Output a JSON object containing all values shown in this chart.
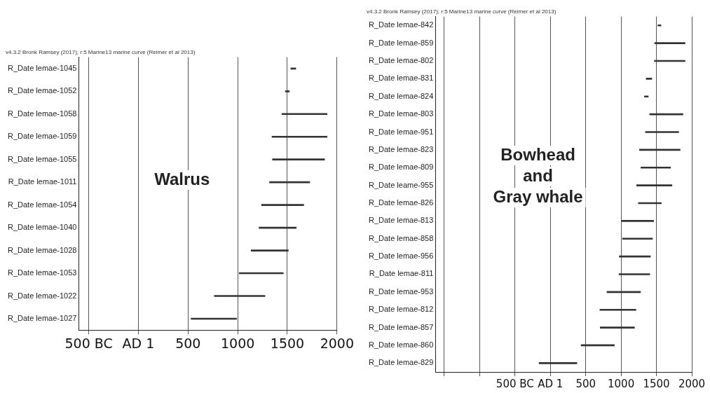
{
  "chart_data": [
    {
      "type": "bar",
      "orientation": "horizontal",
      "title": "v4.3.2 Bronk Ramsey (2017); r:5 Marine13 marine curve (Reimer et al 2013)",
      "categories": [
        "R_Date lemae-1045",
        "R_Date lemae-1052",
        "R_Date lemae-1058",
        "R_Date lemae-1059",
        "R_Date lemae-1055",
        "R_Date lemae-1011",
        "R_Date lemae-1054",
        "R_Date lemae-1040",
        "R_Date lemae-1028",
        "R_Date lemae-1053",
        "R_Date lemae-1022",
        "R_Date lemae-1027"
      ],
      "base": [
        1535,
        1480,
        1445,
        1345,
        1350,
        1320,
        1240,
        1215,
        1135,
        1015,
        765,
        530
      ],
      "values": [
        50,
        40,
        455,
        555,
        525,
        405,
        425,
        375,
        375,
        445,
        510,
        460
      ],
      "color": "#333333",
      "xlim": [
        -600,
        2000
      ],
      "xticks": [
        {
          "value": -500,
          "label": "500 BC"
        },
        {
          "value": 0,
          "label": "AD 1"
        },
        500,
        1000,
        1500,
        2000
      ],
      "grid": "x",
      "legend": false,
      "annotations": [
        "Walrus"
      ]
    },
    {
      "type": "bar",
      "orientation": "horizontal",
      "title": "v4.3.2 Bronk Ramsey (2017); r:5 Marine13 marine curve (Reimer et al 2013)",
      "categories": [
        "R_Date lemae-842",
        "R_Date lemae-859",
        "R_Date lemae-802",
        "R_Date lemae-831",
        "R_Date lemae-824",
        "R_Date lemae-803",
        "R_Date lemae-951",
        "R_Date lemae-823",
        "R_Date lemae-809",
        "R_Date leame-955",
        "R_Date lemae-826",
        "R_Date lemae-813",
        "R_Date lemae-858",
        "R_Date lemae-956",
        "R_Date lemae-811",
        "R_Date lemae-953",
        "R_Date lemae-812",
        "R_Date lemae-857",
        "R_Date lemae-860",
        "R_Date lemae-829"
      ],
      "base": [
        1520,
        1475,
        1470,
        1355,
        1330,
        1405,
        1345,
        1260,
        1280,
        1220,
        1245,
        1005,
        1020,
        975,
        970,
        800,
        700,
        705,
        435,
        -160
      ],
      "values": [
        45,
        430,
        435,
        80,
        55,
        470,
        470,
        575,
        420,
        500,
        325,
        455,
        425,
        440,
        435,
        475,
        510,
        485,
        470,
        535
      ],
      "color": "#333333",
      "xlim": [
        -1625,
        2000
      ],
      "xticks": [
        {
          "value": -1500,
          "label": null
        },
        {
          "value": -1000,
          "label": null
        },
        {
          "value": -500,
          "label": "500 BC"
        },
        {
          "value": 0,
          "label": "AD 1"
        },
        500,
        1000,
        1500,
        2000
      ],
      "grid": "x",
      "legend": false,
      "annotations": [
        "Bowhead\nand\nGray whale"
      ]
    }
  ]
}
